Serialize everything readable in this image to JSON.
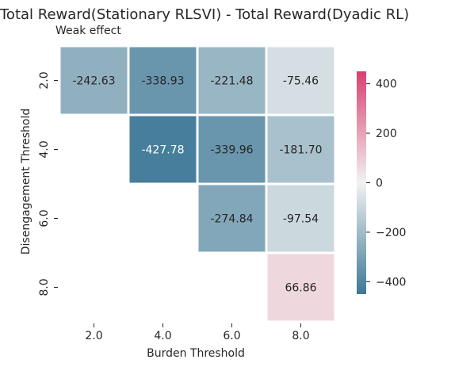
{
  "chart_data": {
    "type": "heatmap",
    "title": "Total Reward(Stationary RLSVI) - Total Reward(Dyadic RL)",
    "subtitle": "Weak effect",
    "xlabel": "Burden Threshold",
    "ylabel": "Disengagement Threshold",
    "x_categories": [
      "2.0",
      "4.0",
      "6.0",
      "8.0"
    ],
    "y_categories": [
      "2.0",
      "4.0",
      "6.0",
      "8.0"
    ],
    "values": [
      [
        -242.63,
        -338.93,
        -221.48,
        -75.46
      ],
      [
        null,
        -427.78,
        -339.96,
        -181.7
      ],
      [
        null,
        null,
        -274.84,
        -97.54
      ],
      [
        null,
        null,
        null,
        66.86
      ]
    ],
    "cell_labels": [
      [
        "-242.63",
        "-338.93",
        "-221.48",
        "-75.46"
      ],
      [
        "",
        "-427.78",
        "-339.96",
        "-181.70"
      ],
      [
        "",
        "",
        "-274.84",
        "-97.54"
      ],
      [
        "",
        "",
        "",
        "66.86"
      ]
    ],
    "colorbar": {
      "vmin": -450,
      "vmax": 450,
      "ticks": [
        400,
        200,
        0,
        -200,
        -400
      ],
      "tick_labels": [
        "400",
        "200",
        "0",
        "−200",
        "−400"
      ],
      "low_color": "#3d7896",
      "mid_color": "#f2f2f2",
      "high_color": "#d9406e"
    },
    "grid": false
  }
}
